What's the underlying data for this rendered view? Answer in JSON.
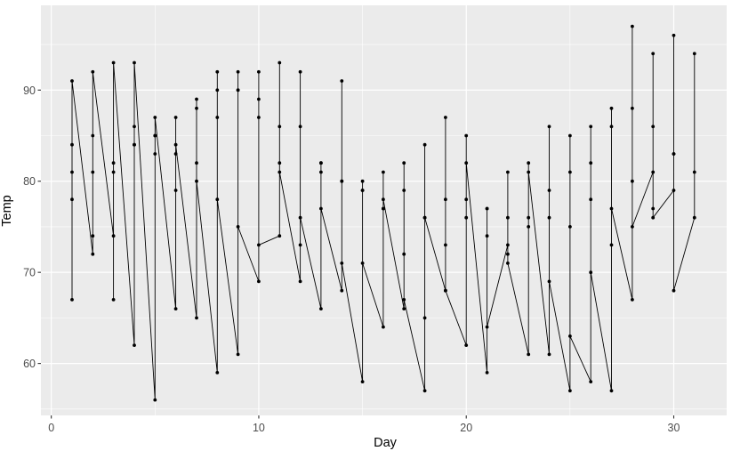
{
  "chart_data": {
    "type": "line",
    "title": "",
    "xlabel": "Day",
    "ylabel": "Temp",
    "x_ticks": [
      0,
      10,
      20,
      30
    ],
    "y_ticks": [
      60,
      70,
      80,
      90
    ],
    "x_minor_ticks": [
      5,
      15,
      25
    ],
    "y_minor_ticks": [
      55,
      65,
      75,
      85,
      95
    ],
    "xlim": [
      -0.5,
      32.55
    ],
    "ylim": [
      54.3,
      99.3
    ],
    "grid": "on",
    "legend": "none",
    "marker": "point",
    "points_by_day": [
      {
        "day": 1,
        "temps": [
          67,
          78,
          84,
          81,
          91
        ]
      },
      {
        "day": 2,
        "temps": [
          72,
          74,
          85,
          81,
          92
        ]
      },
      {
        "day": 3,
        "temps": [
          74,
          67,
          81,
          82,
          93
        ]
      },
      {
        "day": 4,
        "temps": [
          62,
          84,
          84,
          86,
          93
        ]
      },
      {
        "day": 5,
        "temps": [
          56,
          85,
          83,
          85,
          87
        ]
      },
      {
        "day": 6,
        "temps": [
          66,
          79,
          83,
          87,
          84
        ]
      },
      {
        "day": 7,
        "temps": [
          65,
          82,
          88,
          89,
          80
        ]
      },
      {
        "day": 8,
        "temps": [
          59,
          87,
          92,
          90,
          78
        ]
      },
      {
        "day": 9,
        "temps": [
          61,
          90,
          92,
          90,
          75
        ]
      },
      {
        "day": 10,
        "temps": [
          69,
          87,
          89,
          92,
          73
        ]
      },
      {
        "day": 11,
        "temps": [
          74,
          93,
          82,
          86,
          81
        ]
      },
      {
        "day": 12,
        "temps": [
          69,
          92,
          73,
          86,
          76
        ]
      },
      {
        "day": 13,
        "temps": [
          66,
          82,
          81,
          82,
          77
        ]
      },
      {
        "day": 14,
        "temps": [
          68,
          80,
          91,
          80,
          71
        ]
      },
      {
        "day": 15,
        "temps": [
          58,
          79,
          80,
          79,
          71
        ]
      },
      {
        "day": 16,
        "temps": [
          64,
          77,
          81,
          77,
          78
        ]
      },
      {
        "day": 17,
        "temps": [
          66,
          72,
          82,
          79,
          67
        ]
      },
      {
        "day": 18,
        "temps": [
          57,
          65,
          84,
          76,
          76
        ]
      },
      {
        "day": 19,
        "temps": [
          68,
          73,
          87,
          78,
          68
        ]
      },
      {
        "day": 20,
        "temps": [
          62,
          76,
          85,
          78,
          82
        ]
      },
      {
        "day": 21,
        "temps": [
          59,
          77,
          74,
          77,
          64
        ]
      },
      {
        "day": 22,
        "temps": [
          73,
          76,
          81,
          72,
          71
        ]
      },
      {
        "day": 23,
        "temps": [
          61,
          76,
          82,
          75,
          81
        ]
      },
      {
        "day": 24,
        "temps": [
          61,
          76,
          86,
          79,
          69
        ]
      },
      {
        "day": 25,
        "temps": [
          57,
          75,
          85,
          81,
          63
        ]
      },
      {
        "day": 26,
        "temps": [
          58,
          78,
          82,
          86,
          70
        ]
      },
      {
        "day": 27,
        "temps": [
          57,
          73,
          86,
          88,
          77
        ]
      },
      {
        "day": 28,
        "temps": [
          67,
          80,
          88,
          97,
          75
        ]
      },
      {
        "day": 29,
        "temps": [
          81,
          77,
          86,
          94,
          76
        ]
      },
      {
        "day": 30,
        "temps": [
          79,
          83,
          83,
          96,
          68
        ]
      },
      {
        "day": 31,
        "temps": [
          76,
          81,
          94
        ]
      }
    ],
    "colors": {
      "panel_background": "#EBEBEB",
      "grid_major": "#FFFFFF",
      "grid_minor": "#FFFFFF",
      "line": "#000000",
      "point": "#000000",
      "tick_mark": "#333333",
      "tick_label": "#4D4D4D",
      "axis_title": "#000000"
    }
  }
}
